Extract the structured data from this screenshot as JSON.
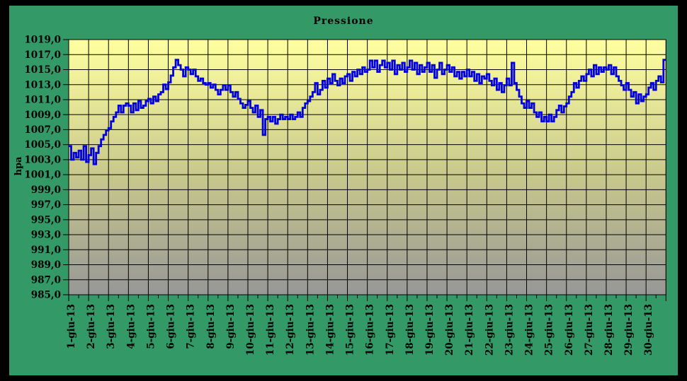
{
  "chart": {
    "title": "Pressione",
    "y_axis_title": "hpa",
    "colors": {
      "frame": "#000000",
      "background": "#339966",
      "plot_top": "#FFFFA0",
      "plot_mid": "#C6C68C",
      "plot_bottom": "#979797",
      "grid": "#000000",
      "border": "#333333",
      "line": "#0000E0",
      "text": "#000000"
    },
    "y_tick_labels": [
      "1019,0",
      "1017,0",
      "1015,0",
      "1013,0",
      "1011,0",
      "1009,0",
      "1007,0",
      "1005,0",
      "1003,0",
      "1001,0",
      "999,0",
      "997,0",
      "995,0",
      "993,0",
      "991,0",
      "989,0",
      "987,0",
      "985,0"
    ],
    "x_tick_labels": [
      "1-giu-13",
      "2-giu-13",
      "3-giu-13",
      "4-giu-13",
      "5-giu-13",
      "6-giu-13",
      "7-giu-13",
      "8-giu-13",
      "9-giu-13",
      "10-giu-13",
      "11-giu-13",
      "12-giu-13",
      "13-giu-13",
      "14-giu-13",
      "15-giu-13",
      "16-giu-13",
      "17-giu-13",
      "18-giu-13",
      "19-giu-13",
      "20-giu-13",
      "21-giu-13",
      "22-giu-13",
      "23-giu-13",
      "24-giu-13",
      "25-giu-13",
      "26-giu-13",
      "27-giu-13",
      "28-giu-13",
      "29-giu-13",
      "30-giu-13"
    ]
  },
  "chart_data": {
    "type": "line",
    "title": "Pressione",
    "xlabel": "",
    "ylabel": "hpa",
    "ylim": [
      985,
      1019
    ],
    "y_tick_step": 2,
    "x_categories_are_days": [
      1,
      30
    ],
    "x_month": "giu-13",
    "points_per_day": 8,
    "grid": true,
    "legend": "none",
    "series": [
      {
        "name": "Pressione (hpa)",
        "values": [
          1004.8,
          1003.0,
          1003.9,
          1003.3,
          1004.2,
          1003.0,
          1004.8,
          1002.7,
          1003.6,
          1004.5,
          1002.4,
          1003.9,
          1004.8,
          1005.7,
          1006.3,
          1006.9,
          1007.2,
          1008.1,
          1008.7,
          1009.3,
          1010.2,
          1009.3,
          1010.2,
          1010.5,
          1010.2,
          1009.3,
          1010.5,
          1009.6,
          1010.8,
          1009.9,
          1010.2,
          1010.8,
          1011.1,
          1010.5,
          1011.4,
          1010.8,
          1011.7,
          1012.0,
          1013.0,
          1012.4,
          1013.3,
          1014.2,
          1015.3,
          1016.3,
          1015.6,
          1015.0,
          1014.1,
          1015.3,
          1015.0,
          1014.4,
          1015.0,
          1014.1,
          1013.5,
          1013.8,
          1013.2,
          1013.0,
          1013.2,
          1012.6,
          1013.0,
          1012.3,
          1011.7,
          1012.3,
          1012.9,
          1012.3,
          1012.9,
          1012.0,
          1011.4,
          1012.0,
          1011.1,
          1010.5,
          1009.9,
          1010.3,
          1010.8,
          1009.9,
          1009.3,
          1010.2,
          1008.7,
          1009.6,
          1006.3,
          1008.4,
          1008.7,
          1008.1,
          1008.7,
          1007.8,
          1008.4,
          1009.0,
          1008.4,
          1008.7,
          1008.4,
          1009.0,
          1008.4,
          1008.7,
          1009.3,
          1008.7,
          1009.9,
          1010.5,
          1010.8,
          1011.4,
          1012.0,
          1013.2,
          1011.7,
          1012.3,
          1013.5,
          1012.6,
          1013.8,
          1013.2,
          1014.4,
          1013.5,
          1012.9,
          1013.8,
          1013.2,
          1014.1,
          1014.4,
          1013.5,
          1014.7,
          1014.1,
          1015.0,
          1014.4,
          1015.3,
          1014.7,
          1015.0,
          1016.2,
          1015.3,
          1016.2,
          1014.7,
          1015.6,
          1016.2,
          1015.3,
          1015.9,
          1015.0,
          1016.2,
          1014.4,
          1015.6,
          1015.0,
          1015.9,
          1014.7,
          1015.3,
          1016.2,
          1015.0,
          1015.9,
          1014.4,
          1015.6,
          1014.7,
          1015.3,
          1015.9,
          1014.7,
          1015.6,
          1013.9,
          1015.0,
          1015.9,
          1014.4,
          1015.0,
          1015.6,
          1014.7,
          1015.3,
          1014.1,
          1014.7,
          1013.8,
          1014.7,
          1014.1,
          1015.0,
          1014.1,
          1014.7,
          1013.5,
          1014.4,
          1013.2,
          1014.1,
          1013.8,
          1014.4,
          1013.5,
          1012.9,
          1013.8,
          1012.3,
          1013.2,
          1012.0,
          1012.9,
          1013.8,
          1012.9,
          1015.9,
          1013.2,
          1012.3,
          1011.4,
          1010.5,
          1009.9,
          1010.8,
          1009.9,
          1010.5,
          1009.3,
          1008.7,
          1009.3,
          1008.1,
          1008.7,
          1008.1,
          1009.0,
          1008.1,
          1008.7,
          1009.6,
          1010.2,
          1009.3,
          1010.1,
          1010.5,
          1011.4,
          1012.0,
          1013.2,
          1012.6,
          1013.5,
          1014.1,
          1013.5,
          1014.4,
          1015.0,
          1014.1,
          1015.6,
          1014.4,
          1015.3,
          1014.7,
          1015.3,
          1015.0,
          1015.6,
          1014.4,
          1015.3,
          1014.1,
          1013.5,
          1012.9,
          1012.3,
          1013.2,
          1012.3,
          1011.4,
          1012.0,
          1010.5,
          1011.7,
          1010.8,
          1011.4,
          1011.7,
          1012.6,
          1013.2,
          1012.3,
          1013.5,
          1014.1,
          1013.3,
          1016.3
        ]
      }
    ]
  }
}
